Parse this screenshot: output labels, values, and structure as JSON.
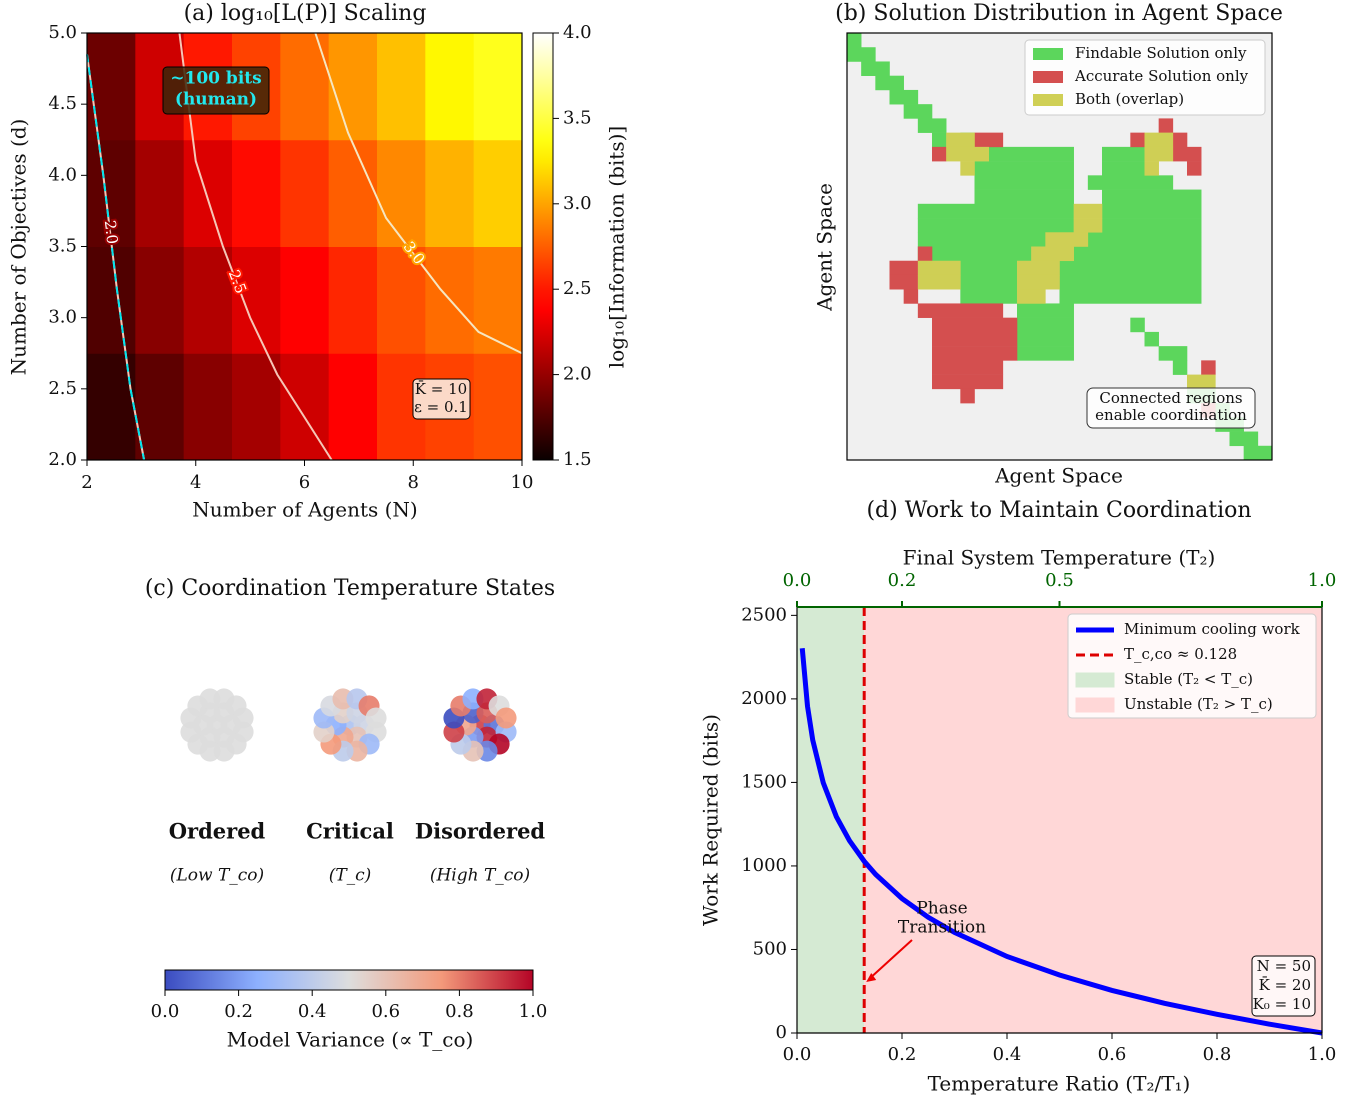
{
  "chart_data": [
    {
      "type": "heatmap",
      "title": "(a) log₁₀[L(P)] Scaling",
      "xlabel": "Number of Agents (N)",
      "ylabel": "Number of Objectives (d)",
      "xlim": [
        2,
        10
      ],
      "ylim": [
        2,
        5
      ],
      "xticks": [
        2,
        4,
        6,
        8,
        10
      ],
      "yticks": [
        {
          "value": 2,
          "label": "2.0"
        },
        {
          "value": 2.5,
          "label": "2.5"
        },
        {
          "value": 3,
          "label": "3.0"
        },
        {
          "value": 3.5,
          "label": "3.5"
        },
        {
          "value": 4,
          "label": "4.0"
        },
        {
          "value": 4.5,
          "label": "4.5"
        },
        {
          "value": 5,
          "label": "5.0"
        }
      ],
      "z": [
        [
          1.65,
          1.8,
          1.95,
          2.05,
          2.2,
          2.4,
          2.6,
          2.65,
          2.7
        ],
        [
          1.75,
          1.95,
          2.1,
          2.25,
          2.4,
          2.55,
          2.7,
          2.8,
          2.85
        ],
        [
          1.8,
          2.05,
          2.25,
          2.45,
          2.6,
          2.75,
          2.9,
          3.05,
          3.15
        ],
        [
          1.85,
          2.2,
          2.5,
          2.65,
          2.8,
          2.95,
          3.1,
          3.3,
          3.4
        ]
      ],
      "colormap": "hot",
      "zlim": [
        1.5,
        4
      ],
      "colorbar_label": "log₁₀[Information (bits)]",
      "colorbar_ticks": [
        1.5,
        {
          "value": 2,
          "label": "2.0"
        },
        2.5,
        {
          "value": 3,
          "label": "3.0"
        },
        3.5,
        {
          "value": 4,
          "label": "4.0"
        }
      ],
      "contours": [
        {
          "level": {
            "value": 2,
            "label": "2.0"
          },
          "x": [
            2,
            2.3,
            2.55,
            2.8,
            3.05
          ],
          "y": [
            4.85,
            4.0,
            3.2,
            2.5,
            2.0
          ],
          "color": "#f6c6b6",
          "highlight_color": "#00e5ee"
        },
        {
          "level": {
            "value": 2.5,
            "label": "2.5"
          },
          "x": [
            3.7,
            4.0,
            4.5,
            5.0,
            5.5,
            6.5
          ],
          "y": [
            5.0,
            4.1,
            3.5,
            3.0,
            2.6,
            2.0
          ],
          "color": "#f6c6b6"
        },
        {
          "level": {
            "value": 3,
            "label": "3.0"
          },
          "x": [
            6.2,
            6.8,
            7.5,
            8.5,
            9.2,
            10
          ],
          "y": [
            5.0,
            4.3,
            3.7,
            3.2,
            2.9,
            2.75
          ],
          "color": "#f6e6c0"
        }
      ],
      "annotation": [
        "~100 bits",
        "(human)"
      ],
      "params": [
        "K̄ = 10",
        "ε = 0.1"
      ]
    },
    {
      "type": "grid",
      "title": "(b) Solution Distribution in Agent Space",
      "xlabel": "Agent Space",
      "ylabel": "Agent Space",
      "legend": "upper right",
      "series": [
        {
          "name": "Findable Solution only",
          "color": "#5cd65c",
          "cells": [
            [
              0,
              0,
              0
            ],
            [
              1,
              0,
              1
            ],
            [
              2,
              1,
              2
            ],
            [
              3,
              2,
              3
            ],
            [
              4,
              3,
              4
            ],
            [
              5,
              4,
              5
            ],
            [
              6,
              5,
              6
            ],
            [
              7,
              6,
              6
            ],
            [
              7,
              8,
              8
            ],
            [
              8,
              10,
              15
            ],
            [
              8,
              18,
              20
            ],
            [
              9,
              9,
              15
            ],
            [
              9,
              18,
              20
            ],
            [
              10,
              9,
              15
            ],
            [
              10,
              17,
              22
            ],
            [
              11,
              9,
              15
            ],
            [
              11,
              18,
              24
            ],
            [
              12,
              5,
              15
            ],
            [
              12,
              18,
              24
            ],
            [
              13,
              5,
              15
            ],
            [
              13,
              18,
              24
            ],
            [
              14,
              5,
              13
            ],
            [
              14,
              17,
              24
            ],
            [
              15,
              5,
              12
            ],
            [
              15,
              16,
              24
            ],
            [
              16,
              8,
              11
            ],
            [
              16,
              15,
              24
            ],
            [
              17,
              8,
              11
            ],
            [
              17,
              15,
              24
            ],
            [
              18,
              8,
              11
            ],
            [
              18,
              15,
              24
            ],
            [
              19,
              12,
              15
            ],
            [
              20,
              12,
              15
            ],
            [
              21,
              12,
              15
            ],
            [
              22,
              12,
              15
            ],
            [
              20,
              20,
              20
            ],
            [
              21,
              21,
              21
            ],
            [
              22,
              22,
              23
            ],
            [
              23,
              23,
              23
            ],
            [
              25,
              24,
              25
            ],
            [
              26,
              26,
              26
            ],
            [
              27,
              26,
              27
            ],
            [
              28,
              27,
              28
            ],
            [
              29,
              28,
              29
            ]
          ]
        },
        {
          "name": "Accurate Solution only",
          "color": "#d44f4f",
          "cells": [
            [
              7,
              9,
              10
            ],
            [
              6,
              22,
              22
            ],
            [
              7,
              20,
              20
            ],
            [
              7,
              23,
              23
            ],
            [
              8,
              6,
              6
            ],
            [
              8,
              23,
              24
            ],
            [
              9,
              24,
              24
            ],
            [
              15,
              5,
              5
            ],
            [
              16,
              3,
              4
            ],
            [
              17,
              3,
              4
            ],
            [
              18,
              4,
              4
            ],
            [
              19,
              5,
              10
            ],
            [
              20,
              6,
              11
            ],
            [
              21,
              6,
              11
            ],
            [
              22,
              6,
              11
            ],
            [
              23,
              6,
              10
            ],
            [
              24,
              6,
              10
            ],
            [
              25,
              8,
              8
            ],
            [
              23,
              25,
              25
            ],
            [
              26,
              25,
              25
            ]
          ]
        },
        {
          "name": "Both (overlap)",
          "color": "#cfcf55",
          "cells": [
            [
              7,
              7,
              8
            ],
            [
              8,
              7,
              9
            ],
            [
              9,
              8,
              8
            ],
            [
              7,
              21,
              22
            ],
            [
              8,
              21,
              22
            ],
            [
              9,
              21,
              21
            ],
            [
              12,
              16,
              17
            ],
            [
              13,
              16,
              17
            ],
            [
              14,
              14,
              16
            ],
            [
              15,
              13,
              15
            ],
            [
              16,
              12,
              14
            ],
            [
              17,
              12,
              14
            ],
            [
              18,
              12,
              13
            ],
            [
              16,
              5,
              7
            ],
            [
              17,
              5,
              7
            ],
            [
              24,
              24,
              25
            ]
          ]
        }
      ],
      "annotation": [
        "Connected regions",
        "enable coordination"
      ]
    },
    {
      "type": "particles",
      "title": "(c) Coordination Temperature States",
      "colormap": "coolwarm",
      "colorbar_label": "Model Variance (∝ T_co)",
      "xlim": [
        0,
        1
      ],
      "xticks": [
        {
          "value": 0,
          "label": "0.0"
        },
        0.2,
        0.4,
        0.6,
        0.8,
        {
          "value": 1,
          "label": "1.0"
        }
      ],
      "groups": [
        {
          "name": "Ordered",
          "subtitle": "(Low T_co)",
          "values": [
            0.5,
            0.5,
            0.5,
            0.5,
            0.5,
            0.5,
            0.5,
            0.5,
            0.5,
            0.5,
            0.5,
            0.5,
            0.5,
            0.5,
            0.5,
            0.5,
            0.5,
            0.5,
            0.5
          ]
        },
        {
          "name": "Critical",
          "subtitle": "(T_c)",
          "values": [
            0.35,
            0.45,
            0.6,
            0.7,
            0.25,
            0.55,
            0.45,
            0.5,
            0.3,
            0.65,
            0.4,
            0.75,
            0.55,
            0.3,
            0.48,
            0.62,
            0.38,
            0.8,
            0.5
          ]
        },
        {
          "name": "Disordered",
          "subtitle": "(High T_co)",
          "values": [
            0.9,
            0.1,
            0.95,
            0.2,
            0.7,
            0.05,
            0.85,
            0.3,
            1.0,
            0.15,
            0.6,
            0.4,
            0.9,
            0.0,
            0.8,
            0.25,
            0.95,
            0.5,
            0.75
          ]
        }
      ]
    },
    {
      "type": "line",
      "title": "(d) Work to Maintain Coordination",
      "xlabel": "Temperature Ratio (T₂/T₁)",
      "ylabel": "Work Required (bits)",
      "x2label": "Final System Temperature (T₂)",
      "xlim": [
        0,
        1
      ],
      "ylim": [
        0,
        2550
      ],
      "xticks": [
        {
          "value": 0,
          "label": "0.0"
        },
        0.2,
        0.4,
        0.6,
        0.8,
        {
          "value": 1,
          "label": "1.0"
        }
      ],
      "yticks": [
        0,
        500,
        1000,
        1500,
        2000,
        2500
      ],
      "x2ticks": [
        {
          "value": 0,
          "label": "0.0"
        },
        0.2,
        0.5,
        {
          "value": 1,
          "label": "1.0"
        }
      ],
      "x2color": "#006400",
      "x": [
        0.01,
        0.02,
        0.03,
        0.05,
        0.075,
        0.1,
        0.128,
        0.15,
        0.2,
        0.25,
        0.3,
        0.4,
        0.5,
        0.6,
        0.7,
        0.8,
        0.9,
        1.0
      ],
      "series": [
        {
          "name": "Minimum cooling work",
          "color": "#0000ff",
          "values": [
            2303,
            1956,
            1753,
            1498,
            1295,
            1151,
            1028,
            949,
            805,
            693,
            602,
            458,
            347,
            255,
            178,
            112,
            53,
            0
          ]
        }
      ],
      "vline": {
        "name": "T_c,co ≈ 0.128",
        "value": 0.128,
        "color": "#dd0000"
      },
      "spans": [
        {
          "name": "Stable (T₂ < T_c)",
          "from": 0,
          "to": 0.128,
          "color": "#d5ead3"
        },
        {
          "name": "Unstable (T₂ > T_c)",
          "from": 0.128,
          "to": 1,
          "color": "#ffd7d7"
        }
      ],
      "legend": "upper right",
      "annotation": [
        "Phase",
        "Transition"
      ],
      "params": [
        "N = 50",
        "K̄ = 20",
        "K₀ = 10"
      ]
    }
  ]
}
